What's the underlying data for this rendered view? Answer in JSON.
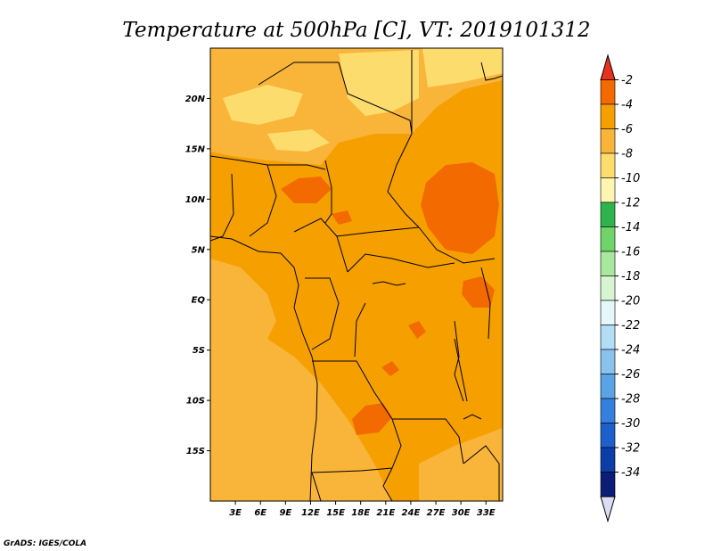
{
  "chart_data": {
    "type": "heatmap",
    "title": "Temperature at 500hPa [C], VT: 2019101312",
    "variable": "Temperature at 500hPa",
    "units": "C",
    "valid_time": "2019101312",
    "x_range": [
      0,
      35
    ],
    "y_range": [
      -20,
      25
    ],
    "x_ticks": [
      {
        "value": 3,
        "label": "3E"
      },
      {
        "value": 6,
        "label": "6E"
      },
      {
        "value": 9,
        "label": "9E"
      },
      {
        "value": 12,
        "label": "12E"
      },
      {
        "value": 15,
        "label": "15E"
      },
      {
        "value": 18,
        "label": "18E"
      },
      {
        "value": 21,
        "label": "21E"
      },
      {
        "value": 24,
        "label": "24E"
      },
      {
        "value": 27,
        "label": "27E"
      },
      {
        "value": 30,
        "label": "30E"
      },
      {
        "value": 33,
        "label": "33E"
      }
    ],
    "y_ticks": [
      {
        "value": 20,
        "label": "20N"
      },
      {
        "value": 15,
        "label": "15N"
      },
      {
        "value": 10,
        "label": "10N"
      },
      {
        "value": 5,
        "label": "5N"
      },
      {
        "value": 0,
        "label": "EQ"
      },
      {
        "value": -5,
        "label": "5S"
      },
      {
        "value": -10,
        "label": "10S"
      },
      {
        "value": -15,
        "label": "15S"
      }
    ],
    "colorbar": {
      "levels": [
        -2,
        -4,
        -6,
        -8,
        -10,
        -12,
        -14,
        -16,
        -18,
        -20,
        -22,
        -24,
        -26,
        -28,
        -30,
        -32,
        -34
      ],
      "colors": [
        "#e8321c",
        "#f26a00",
        "#f5a000",
        "#f9b43a",
        "#fddc6e",
        "#fff4b0",
        "#2fb34c",
        "#6fd56a",
        "#a8e89e",
        "#d6f5d0",
        "#e6f7fb",
        "#b4dcf4",
        "#88c2ed",
        "#5aa3e6",
        "#3580dc",
        "#1f5fcc",
        "#0c3ea8",
        "#0a1e78",
        "#dcdcf5"
      ]
    },
    "regions": [
      {
        "level": -6,
        "desc": "dominant band over central Africa"
      },
      {
        "level": -8,
        "desc": "Sahara north, Atlantic and Angola south"
      },
      {
        "level": -10,
        "desc": "pale patches over Libya, Egypt and Algeria"
      },
      {
        "level": -4,
        "desc": "warm core over South Sudan, Nigeria, Lake Victoria, Zambia"
      }
    ]
  },
  "footer": {
    "credit": "GrADS: IGES/COLA"
  }
}
